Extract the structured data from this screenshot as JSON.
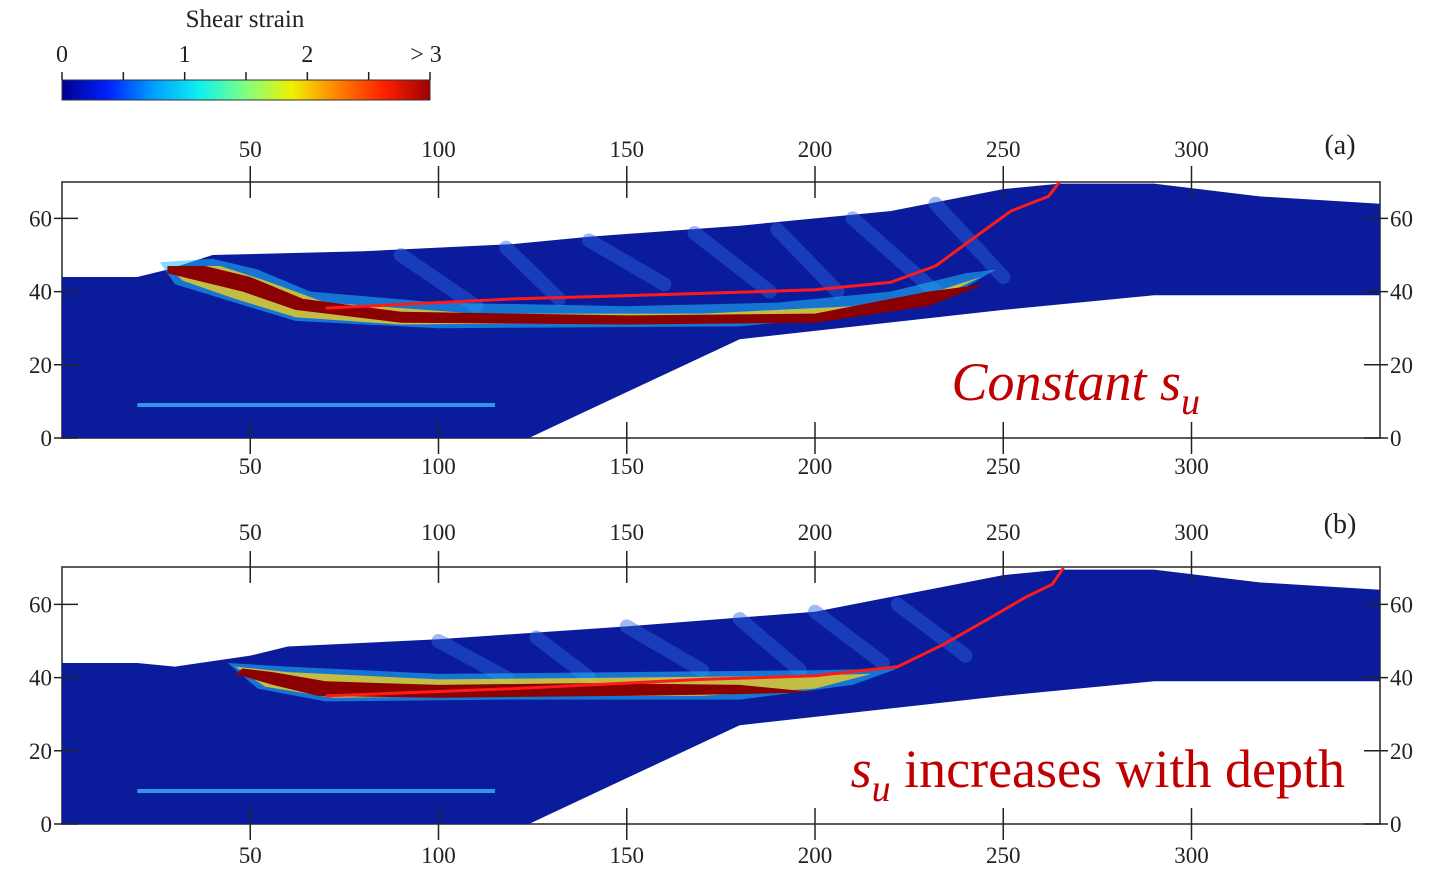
{
  "colorbar": {
    "title": "Shear strain",
    "ticks": [
      "0",
      "1",
      "2",
      "> 3"
    ],
    "colors": [
      "#00008f",
      "#0020ff",
      "#00a0ff",
      "#10f0f0",
      "#80ff80",
      "#f0f000",
      "#ff8000",
      "#ff2000",
      "#a00000"
    ]
  },
  "axes": {
    "x_ticks": [
      "50",
      "100",
      "150",
      "200",
      "250",
      "300"
    ],
    "y_ticks": [
      "0",
      "20",
      "40",
      "60"
    ],
    "x_tick_values": [
      50,
      100,
      150,
      200,
      250,
      300
    ],
    "y_tick_values": [
      0,
      20,
      40,
      60
    ]
  },
  "panels": [
    {
      "id": "a",
      "label": "(a)",
      "annotation_main": "Constant s",
      "annotation_sub": "u",
      "annotation_suffix": ""
    },
    {
      "id": "b",
      "label": "(b)",
      "annotation_main": "s",
      "annotation_sub": "u",
      "annotation_suffix": " increases with depth"
    }
  ],
  "colors": {
    "soil": "#0a1c9c",
    "slip_line": "#ff1a1a",
    "annotation": "#c00000",
    "shear_band": "#8b0000"
  }
}
